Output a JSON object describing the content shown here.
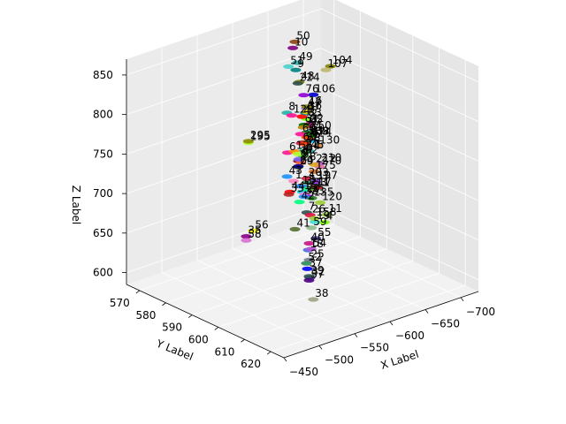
{
  "chart_data": {
    "type": "scatter",
    "projection": "3d",
    "grid": true,
    "xlabel": "X Label",
    "ylabel": "Y Label",
    "zlabel": "Z Label",
    "xlim": [
      -725,
      -450
    ],
    "ylim": [
      565,
      625
    ],
    "zlim": [
      585,
      870
    ],
    "x_ticks": [
      "−700",
      "−650",
      "−600",
      "−550",
      "−500",
      "−450"
    ],
    "x_tick_values": [
      -700,
      -650,
      -600,
      -550,
      -500,
      -450
    ],
    "y_ticks": [
      "570",
      "580",
      "590",
      "600",
      "610",
      "620"
    ],
    "y_tick_values": [
      570,
      580,
      590,
      600,
      610,
      620
    ],
    "z_ticks": [
      "600",
      "650",
      "700",
      "750",
      "800",
      "850"
    ],
    "z_tick_values": [
      600,
      650,
      700,
      750,
      800,
      850
    ],
    "points": [
      {
        "label": "0",
        "x": -640,
        "y": 580,
        "z": 710,
        "color": "#c79fef"
      },
      {
        "label": "1",
        "x": -575,
        "y": 595,
        "z": 724,
        "color": "#ff81c0"
      },
      {
        "label": "2",
        "x": -578,
        "y": 596,
        "z": 750,
        "color": "#8b0000"
      },
      {
        "label": "3",
        "x": -582,
        "y": 597,
        "z": 718,
        "color": "#4682b4"
      },
      {
        "label": "4",
        "x": -600,
        "y": 600,
        "z": 672,
        "color": "#7cfc00"
      },
      {
        "label": "5",
        "x": -598,
        "y": 596,
        "z": 770,
        "color": "#00bfff"
      },
      {
        "label": "6",
        "x": -570,
        "y": 594,
        "z": 760,
        "color": "#ff1493"
      },
      {
        "label": "7",
        "x": -575,
        "y": 600,
        "z": 692,
        "color": "#2f4f4f"
      },
      {
        "label": "8",
        "x": -584,
        "y": 590,
        "z": 800,
        "color": "#20b2aa"
      },
      {
        "label": "9",
        "x": -604,
        "y": 588,
        "z": 845,
        "color": "#008080"
      },
      {
        "label": "10",
        "x": -611,
        "y": 585,
        "z": 866,
        "color": "#800080"
      },
      {
        "label": "11",
        "x": -596,
        "y": 602,
        "z": 686,
        "color": "#9acd32"
      },
      {
        "label": "12",
        "x": -550,
        "y": 602,
        "z": 780,
        "color": "#ff8c00"
      },
      {
        "label": "13",
        "x": -555,
        "y": 603,
        "z": 736,
        "color": "#1e90ff"
      },
      {
        "label": "14",
        "x": -580,
        "y": 598,
        "z": 764,
        "color": "#32cd32"
      },
      {
        "label": "15",
        "x": -580,
        "y": 597,
        "z": 712,
        "color": "#00ced1"
      },
      {
        "label": "16",
        "x": -590,
        "y": 596,
        "z": 815,
        "color": "#808000"
      },
      {
        "label": "17",
        "x": -585,
        "y": 601,
        "z": 722,
        "color": "#ff0000"
      },
      {
        "label": "18",
        "x": -555,
        "y": 606,
        "z": 660,
        "color": "#4169e1"
      },
      {
        "label": "19",
        "x": -568,
        "y": 605,
        "z": 690,
        "color": "#40e0d0"
      },
      {
        "label": "20",
        "x": -561,
        "y": 603,
        "z": 724,
        "color": "#ee82ee"
      },
      {
        "label": "21",
        "x": -575,
        "y": 601,
        "z": 790,
        "color": "#00ff00"
      },
      {
        "label": "22",
        "x": -570,
        "y": 602,
        "z": 808,
        "color": "#c71585"
      },
      {
        "label": "23",
        "x": -560,
        "y": 605,
        "z": 724,
        "color": "#9400d3"
      },
      {
        "label": "24",
        "x": -571,
        "y": 601,
        "z": 796,
        "color": "#228b22"
      },
      {
        "label": "25",
        "x": -545,
        "y": 609,
        "z": 655,
        "color": "#708090"
      },
      {
        "label": "26",
        "x": -565,
        "y": 604,
        "z": 698,
        "color": "#dc143c"
      },
      {
        "label": "27",
        "x": -560,
        "y": 603,
        "z": 780,
        "color": "#66cdaa"
      },
      {
        "label": "28",
        "x": -552,
        "y": 604,
        "z": 768,
        "color": "#ff6347"
      },
      {
        "label": "29",
        "x": -548,
        "y": 604,
        "z": 764,
        "color": "#556b2f"
      },
      {
        "label": "30",
        "x": -540,
        "y": 606,
        "z": 786,
        "color": "#adff2f"
      },
      {
        "label": "31",
        "x": -560,
        "y": 603,
        "z": 812,
        "color": "#006400"
      },
      {
        "label": "32",
        "x": -535,
        "y": 612,
        "z": 640,
        "color": "#483d8b"
      },
      {
        "label": "33",
        "x": -520,
        "y": 608,
        "z": 744,
        "color": "#b22222"
      },
      {
        "label": "34",
        "x": -545,
        "y": 607,
        "z": 732,
        "color": "#1e90ff"
      },
      {
        "label": "35",
        "x": -445,
        "y": 612,
        "z": 720,
        "color": "#8b008b"
      },
      {
        "label": "36",
        "x": -560,
        "y": 604,
        "z": 830,
        "color": "#ffd700"
      },
      {
        "label": "37",
        "x": -535,
        "y": 611,
        "z": 650,
        "color": "#0000ff"
      },
      {
        "label": "38",
        "x": -525,
        "y": 616,
        "z": 622,
        "color": "#9ca383"
      },
      {
        "label": "39",
        "x": -530,
        "y": 613,
        "z": 645,
        "color": "#2f4f4f"
      },
      {
        "label": "40",
        "x": -545,
        "y": 609,
        "z": 676,
        "color": "#c71585"
      },
      {
        "label": "41",
        "x": -525,
        "y": 609,
        "z": 700,
        "color": "#556b2f"
      },
      {
        "label": "42",
        "x": -535,
        "y": 608,
        "z": 730,
        "color": "#00ff7f"
      },
      {
        "label": "43",
        "x": -525,
        "y": 606,
        "z": 762,
        "color": "#1e90ff"
      },
      {
        "label": "44",
        "x": -525,
        "y": 607,
        "z": 744,
        "color": "#ff0000"
      },
      {
        "label": "45",
        "x": -615,
        "y": 590,
        "z": 742,
        "color": "#20b2aa"
      },
      {
        "label": "46",
        "x": -620,
        "y": 586,
        "z": 778,
        "color": "#ff0000"
      },
      {
        "label": "47",
        "x": -630,
        "y": 585,
        "z": 784,
        "color": "#9370db"
      },
      {
        "label": "48",
        "x": -620,
        "y": 585,
        "z": 820,
        "color": "#808000"
      },
      {
        "label": "49",
        "x": -625,
        "y": 583,
        "z": 840,
        "color": "#20b2aa"
      },
      {
        "label": "50",
        "x": -625,
        "y": 582,
        "z": 865,
        "color": "#8b4513"
      },
      {
        "label": "51",
        "x": -590,
        "y": 589,
        "z": 855,
        "color": "#48d1cc"
      },
      {
        "label": "52",
        "x": -530,
        "y": 612,
        "z": 660,
        "color": "#2e8b57"
      },
      {
        "label": "53",
        "x": -560,
        "y": 606,
        "z": 736,
        "color": "#6b8e23"
      },
      {
        "label": "54",
        "x": -548,
        "y": 609,
        "z": 668,
        "color": "#ba55d3"
      },
      {
        "label": "55",
        "x": -562,
        "y": 607,
        "z": 674,
        "color": "#483d8b"
      },
      {
        "label": "56",
        "x": -455,
        "y": 612,
        "z": 724,
        "color": "#ffff00"
      },
      {
        "label": "57",
        "x": -530,
        "y": 613,
        "z": 640,
        "color": "#4b0082"
      },
      {
        "label": "58",
        "x": -445,
        "y": 612,
        "z": 715,
        "color": "#da70d6"
      },
      {
        "label": "59",
        "x": -552,
        "y": 608,
        "z": 692,
        "color": "#8fbc8f"
      },
      {
        "label": "60",
        "x": -555,
        "y": 603,
        "z": 802,
        "color": "#ff1493"
      },
      {
        "label": "61",
        "x": -545,
        "y": 605,
        "z": 776,
        "color": "#7b68ee"
      },
      {
        "label": "62",
        "x": -555,
        "y": 604,
        "z": 776,
        "color": "#32cd32"
      },
      {
        "label": "63",
        "x": -556,
        "y": 603,
        "z": 790,
        "color": "#dc143c"
      },
      {
        "label": "64",
        "x": -541,
        "y": 606,
        "z": 770,
        "color": "#000080"
      },
      {
        "label": "65",
        "x": -628,
        "y": 586,
        "z": 764,
        "color": "#8b0000"
      },
      {
        "label": "67",
        "x": -610,
        "y": 590,
        "z": 792,
        "color": "#008b8b"
      },
      {
        "label": "68",
        "x": -558,
        "y": 604,
        "z": 790,
        "color": "#ff4500"
      },
      {
        "label": "76",
        "x": -630,
        "y": 584,
        "z": 799,
        "color": "#9400d3"
      },
      {
        "label": "83",
        "x": -634,
        "y": 584,
        "z": 768,
        "color": "#7cfc00"
      },
      {
        "label": "91",
        "x": -555,
        "y": 604,
        "z": 812,
        "color": "#b8860b"
      },
      {
        "label": "97",
        "x": -560,
        "y": 603,
        "z": 790,
        "color": "#a0522d"
      },
      {
        "label": "104",
        "x": -690,
        "y": 578,
        "z": 808,
        "color": "#808000"
      },
      {
        "label": "106",
        "x": -640,
        "y": 585,
        "z": 798,
        "color": "#0000cd"
      },
      {
        "label": "107",
        "x": -680,
        "y": 579,
        "z": 808,
        "color": "#bdb76b"
      },
      {
        "label": "120",
        "x": -620,
        "y": 593,
        "z": 680,
        "color": "#9acd32"
      },
      {
        "label": "129",
        "x": -550,
        "y": 601,
        "z": 824,
        "color": "#ff1493"
      },
      {
        "label": "130",
        "x": -598,
        "y": 598,
        "z": 766,
        "color": "#cd853f"
      },
      {
        "label": "135",
        "x": -560,
        "y": 606,
        "z": 724,
        "color": "#228b22"
      },
      {
        "label": "137",
        "x": -576,
        "y": 600,
        "z": 730,
        "color": "#2e8b57"
      },
      {
        "label": "138",
        "x": -624,
        "y": 587,
        "z": 752,
        "color": "#ff69b4"
      },
      {
        "label": "150",
        "x": -590,
        "y": 597,
        "z": 785,
        "color": "#4682b4"
      },
      {
        "label": "158",
        "x": -560,
        "y": 607,
        "z": 700,
        "color": "#9acd32"
      },
      {
        "label": "169",
        "x": -560,
        "y": 604,
        "z": 798,
        "color": "#ff4500"
      },
      {
        "label": "174",
        "x": -583,
        "y": 599,
        "z": 782,
        "color": "#b22222"
      },
      {
        "label": "175",
        "x": -600,
        "y": 596,
        "z": 730,
        "color": "#d2691e"
      },
      {
        "label": "195",
        "x": -500,
        "y": 598,
        "z": 800,
        "color": "#adff2f"
      },
      {
        "label": "197",
        "x": -610,
        "y": 594,
        "z": 711,
        "color": "#8a2be2"
      },
      {
        "label": "203",
        "x": -575,
        "y": 600,
        "z": 735,
        "color": "#dc143c"
      },
      {
        "label": "210",
        "x": -660,
        "y": 582,
        "z": 700,
        "color": "#ba55d3"
      },
      {
        "label": "211",
        "x": -558,
        "y": 605,
        "z": 735,
        "color": "#00fa9a"
      },
      {
        "label": "212",
        "x": -593,
        "y": 598,
        "z": 744,
        "color": "#daa520"
      },
      {
        "label": "224",
        "x": -592,
        "y": 592,
        "z": 838,
        "color": "#2f4f4f"
      },
      {
        "label": "270",
        "x": -660,
        "y": 582,
        "z": 696,
        "color": "#db7093"
      },
      {
        "label": "295",
        "x": -500,
        "y": 598,
        "z": 802,
        "color": "#8b8b00"
      }
    ]
  }
}
